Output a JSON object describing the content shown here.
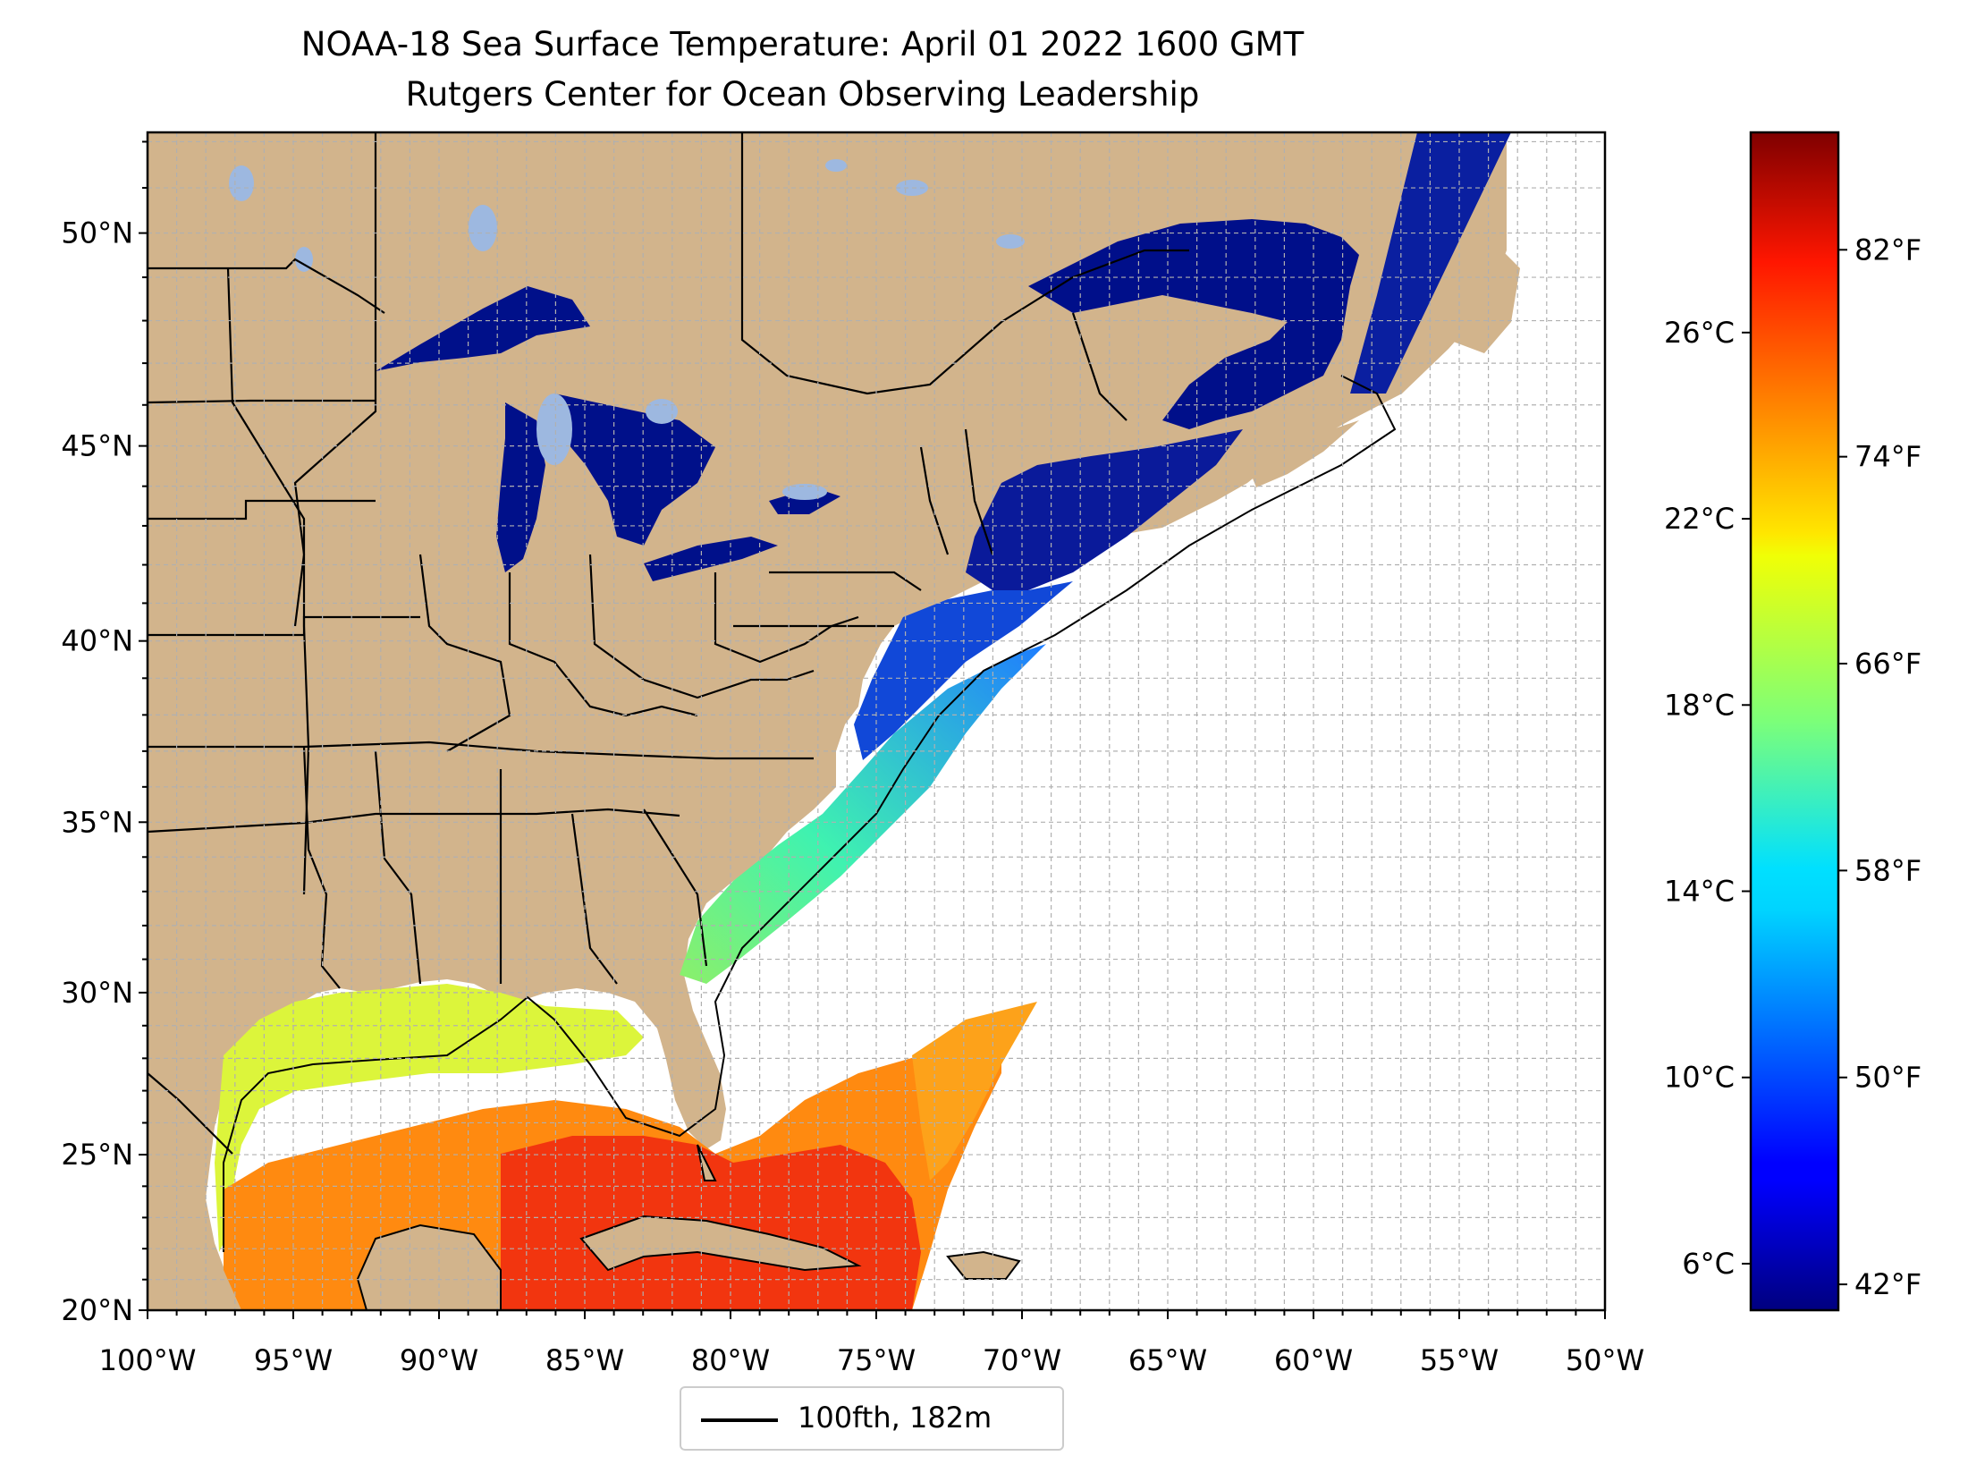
{
  "title": {
    "line1": "NOAA-18 Sea Surface Temperature: April 01 2022 1600 GMT",
    "line2": "Rutgers Center for Ocean Observing Leadership"
  },
  "map": {
    "lon_range": [
      -100,
      -50
    ],
    "lat_range": [
      20,
      52.2
    ],
    "lon_ticks": [
      "100°W",
      "95°W",
      "90°W",
      "85°W",
      "80°W",
      "75°W",
      "70°W",
      "65°W",
      "60°W",
      "55°W",
      "50°W"
    ],
    "lat_ticks": [
      {
        "lat": 20,
        "label": "20°N"
      },
      {
        "lat": 25,
        "label": "25°N"
      },
      {
        "lat": 30,
        "label": "30°N"
      },
      {
        "lat": 35,
        "label": "35°N"
      },
      {
        "lat": 40,
        "label": "40°N"
      },
      {
        "lat": 45,
        "label": "45°N"
      },
      {
        "lat": 50,
        "label": "50°N"
      }
    ],
    "gridlines": "dashed, every 1°",
    "colors": {
      "land": "#d2b48c",
      "inland_lakes": "#9db8e0",
      "boundaries": "#000000",
      "isobath": "#000000"
    }
  },
  "colorbar": {
    "colormap": "jet",
    "range_c": [
      5,
      30.3
    ],
    "celsius_ticks": [
      {
        "c": 6,
        "label": "6°C"
      },
      {
        "c": 10,
        "label": "10°C"
      },
      {
        "c": 14,
        "label": "14°C"
      },
      {
        "c": 18,
        "label": "18°C"
      },
      {
        "c": 22,
        "label": "22°C"
      },
      {
        "c": 26,
        "label": "26°C"
      }
    ],
    "fahrenheit_ticks": [
      {
        "f": 42,
        "label": "42°F"
      },
      {
        "f": 50,
        "label": "50°F"
      },
      {
        "f": 58,
        "label": "58°F"
      },
      {
        "f": 66,
        "label": "66°F"
      },
      {
        "f": 74,
        "label": "74°F"
      },
      {
        "f": 82,
        "label": "82°F"
      }
    ]
  },
  "legend": {
    "label": "100fth, 182m"
  }
}
